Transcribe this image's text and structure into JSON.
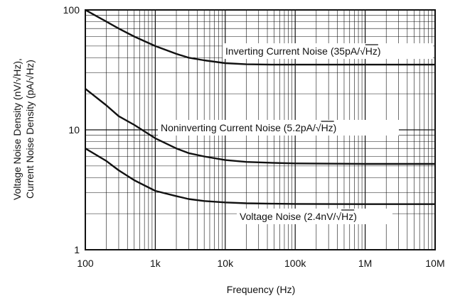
{
  "chart_data": {
    "type": "line",
    "x_scale": "log",
    "y_scale": "log",
    "xlim": [
      100,
      10000000
    ],
    "ylim": [
      1,
      100
    ],
    "grid": true,
    "xlabel": "Frequency (Hz)",
    "ylabel_line1": "Voltage Noise Density (nV/√Hz),",
    "ylabel_line2": "Current Noise Density (pA/√Hz)",
    "x_ticks": [
      {
        "value": 100,
        "label": "100"
      },
      {
        "value": 1000,
        "label": "1k"
      },
      {
        "value": 10000,
        "label": "10k"
      },
      {
        "value": 100000,
        "label": "100k"
      },
      {
        "value": 1000000,
        "label": "1M"
      },
      {
        "value": 10000000,
        "label": "10M"
      }
    ],
    "y_ticks": [
      {
        "value": 1,
        "label": "1"
      },
      {
        "value": 10,
        "label": "10"
      },
      {
        "value": 100,
        "label": "100"
      }
    ],
    "series": [
      {
        "name": "Inverting Current Noise (35pA/√Hz)",
        "x": [
          100,
          200,
          300,
          500,
          1000,
          2000,
          3000,
          5000,
          10000,
          20000,
          50000,
          100000,
          1000000,
          10000000
        ],
        "y": [
          100,
          80,
          70,
          60,
          50,
          43,
          40,
          38,
          36,
          35.2,
          35,
          35,
          35,
          35
        ]
      },
      {
        "name": "Noninverting Current Noise (5.2pA/√Hz)",
        "x": [
          100,
          200,
          300,
          500,
          1000,
          2000,
          3000,
          5000,
          10000,
          20000,
          50000,
          100000,
          1000000,
          10000000
        ],
        "y": [
          22,
          16,
          13,
          11,
          8.5,
          7,
          6.4,
          6,
          5.6,
          5.4,
          5.3,
          5.25,
          5.2,
          5.2
        ]
      },
      {
        "name": "Voltage Noise (2.4nV/√Hz)",
        "x": [
          100,
          200,
          300,
          500,
          1000,
          2000,
          3000,
          5000,
          10000,
          20000,
          50000,
          100000,
          1000000,
          10000000
        ],
        "y": [
          7,
          5.5,
          4.6,
          3.8,
          3.1,
          2.8,
          2.65,
          2.55,
          2.48,
          2.44,
          2.42,
          2.41,
          2.4,
          2.4
        ]
      }
    ]
  }
}
